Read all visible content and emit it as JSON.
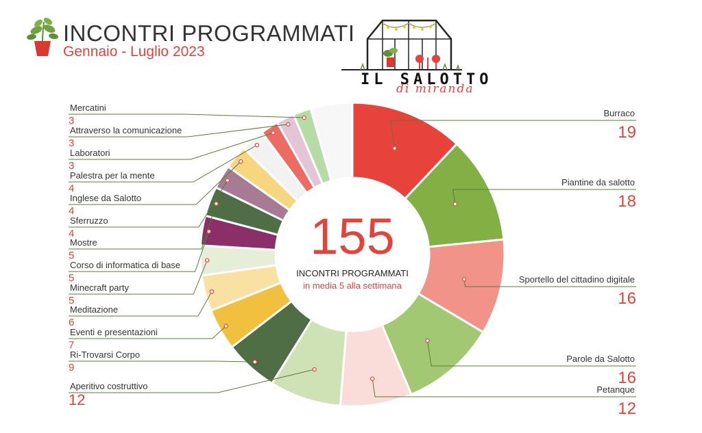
{
  "header": {
    "title": "INCONTRI PROGRAMMATI",
    "subtitle": "Gennaio - Luglio 2023",
    "plant_icon": "potted-plant-icon"
  },
  "logo": {
    "name": "IL SALOTTO",
    "tagline": "di miranda",
    "icon": "greenhouse-icon"
  },
  "center": {
    "total": "155",
    "label": "INCONTRI PROGRAMMATI",
    "sublabel": "in media 5 alla settimana"
  },
  "colors": {
    "accent_red": "#e2433a",
    "leader_line": "#5b7a3a",
    "text_dark": "#333333"
  },
  "chart_data": {
    "type": "pie",
    "donut": true,
    "total": 155,
    "slices": [
      {
        "label": "Burraco",
        "value": 19,
        "color": "#e8433a"
      },
      {
        "label": "Piantine da salotto",
        "value": 18,
        "color": "#82b045"
      },
      {
        "label": "Sportello del cittadino digitale",
        "value": 16,
        "color": "#f2938a"
      },
      {
        "label": "Parole da Salotto",
        "value": 16,
        "color": "#a3c873"
      },
      {
        "label": "Petanque",
        "value": 12,
        "color": "#fadcd8"
      },
      {
        "label": "Aperitivo costruttivo",
        "value": 12,
        "color": "#cfe2b6"
      },
      {
        "label": "Ri-Trovarsi Corpo",
        "value": 9,
        "color": "#4f6e46"
      },
      {
        "label": "Eventi e presentazioni",
        "value": 7,
        "color": "#f0c03e"
      },
      {
        "label": "Meditazione",
        "value": 6,
        "color": "#f9e0a3"
      },
      {
        "label": "Minecraft party",
        "value": 5,
        "color": "#e6eed8"
      },
      {
        "label": "Corso di informatica di base",
        "value": 5,
        "color": "#8a2f67"
      },
      {
        "label": "Mostre",
        "value": 5,
        "color": "#4f6e46"
      },
      {
        "label": "Sferruzzo",
        "value": 4,
        "color": "#a77a95"
      },
      {
        "label": "Inglese da Salotto",
        "value": 4,
        "color": "#f6d77f"
      },
      {
        "label": "Palestra per la mente",
        "value": 4,
        "color": "#f2f2f2"
      },
      {
        "label": "Laboratori",
        "value": 3,
        "color": "#ec6b62"
      },
      {
        "label": "Attraverso la comunicazione",
        "value": 3,
        "color": "#e3c6d6"
      },
      {
        "label": "Mercatini",
        "value": 3,
        "color": "#b6dca6"
      },
      {
        "label": "",
        "value": 7,
        "color": "#f7f7f7"
      }
    ],
    "right_labels": [
      {
        "label": "Burraco",
        "value": "19",
        "slice": 0
      },
      {
        "label": "Piantine da salotto",
        "value": "18",
        "slice": 1
      },
      {
        "label": "Sportello del cittadino digitale",
        "value": "16",
        "slice": 2
      },
      {
        "label": "Parole da Salotto ",
        "value": "16",
        "slice": 3
      },
      {
        "label": "Petanque",
        "value": "12",
        "slice": 4
      }
    ],
    "left_labels": [
      {
        "label": "Mercatini",
        "value": "3",
        "slice": 17
      },
      {
        "label": "Attraverso la comunicazione",
        "value": "3",
        "slice": 16
      },
      {
        "label": "Laboratori",
        "value": "3",
        "slice": 15
      },
      {
        "label": "Palestra per la mente",
        "value": "4",
        "slice": 14
      },
      {
        "label": "Inglese da Salotto",
        "value": "4",
        "slice": 13
      },
      {
        "label": "Sferruzzo",
        "value": "4",
        "slice": 12
      },
      {
        "label": "Mostre",
        "value": "5",
        "slice": 11
      },
      {
        "label": "Corso di informatica di base",
        "value": "5",
        "slice": 10
      },
      {
        "label": "Minecraft party",
        "value": "5",
        "slice": 9
      },
      {
        "label": "Meditazione",
        "value": "6",
        "slice": 8
      },
      {
        "label": "Eventi e presentazioni",
        "value": "7",
        "slice": 7
      },
      {
        "label": "Ri-Trovarsi Corpo",
        "value": "9",
        "slice": 6
      },
      {
        "label": "Aperitivo costruttivo",
        "value": "12",
        "slice": 5
      }
    ]
  }
}
